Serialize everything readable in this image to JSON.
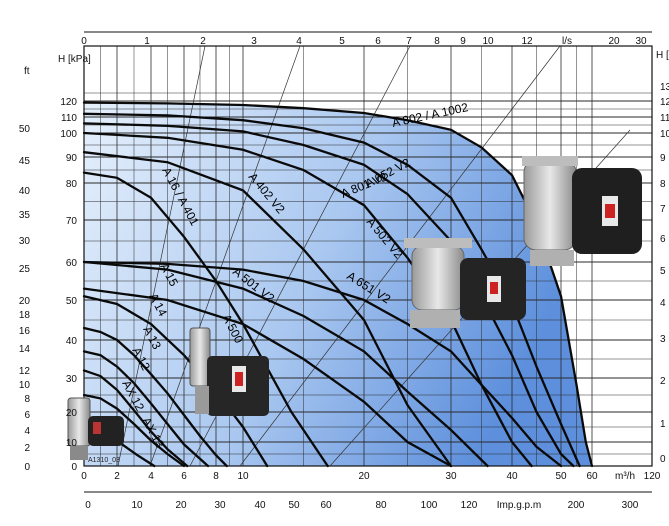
{
  "chart_data": {
    "type": "line",
    "title": "",
    "x_axis": {
      "label": "m³/h",
      "range": [
        0,
        120
      ],
      "ticks": [
        0,
        2,
        4,
        6,
        8,
        10,
        20,
        30,
        40,
        50,
        60,
        120
      ]
    },
    "top_axis": {
      "label": "l/s",
      "ticks": [
        "0",
        "1",
        "2",
        "3",
        "4",
        "5",
        "6",
        "7",
        "8",
        "9",
        "10",
        "12",
        "l/s",
        "20",
        "30"
      ]
    },
    "bottom_axis": {
      "label": "Imp.g.p.m",
      "ticks": [
        "0",
        "10",
        "20",
        "30",
        "40",
        "50",
        "60",
        "80",
        "100",
        "120",
        "Imp.g.p.m",
        "200",
        "300"
      ]
    },
    "y_axis": {
      "label": "H [kPa]",
      "range": [
        0,
        130
      ],
      "ticks": [
        0,
        10,
        20,
        30,
        40,
        50,
        60,
        70,
        80,
        90,
        100,
        110,
        120
      ]
    },
    "y_axis_ft": {
      "label": "ft",
      "ticks": [
        "0",
        "2",
        "4",
        "6",
        "8",
        "10",
        "12",
        "14",
        "16",
        "18",
        "20",
        "25",
        "30",
        "35",
        "40",
        "45",
        "50"
      ]
    },
    "y_axis_right": {
      "label": "H [m]",
      "ticks": [
        "0",
        "1",
        "2",
        "3",
        "4",
        "5",
        "6",
        "7",
        "8",
        "9",
        "10",
        "11",
        "12",
        "13"
      ]
    },
    "grid": true,
    "series": [
      {
        "name": "AX 12",
        "x": [
          0,
          0.8,
          1.6,
          2.4,
          3.2,
          4.2
        ],
        "y": [
          16,
          14.5,
          12,
          8.5,
          4.5,
          0
        ]
      },
      {
        "name": "AX 13",
        "x": [
          0,
          1,
          2,
          3,
          4,
          5,
          6
        ],
        "y": [
          25,
          24,
          21,
          16,
          10.5,
          5,
          0
        ]
      },
      {
        "name": "A 12",
        "x": [
          0,
          1,
          2,
          3,
          4,
          5,
          6.2
        ],
        "y": [
          32,
          30.5,
          26.5,
          20.5,
          13.5,
          7,
          0
        ]
      },
      {
        "name": "A 13",
        "x": [
          0,
          1,
          2,
          3,
          4,
          5,
          6,
          7.5
        ],
        "y": [
          37,
          36,
          33,
          28.5,
          22.5,
          16,
          9,
          0
        ]
      },
      {
        "name": "A 14",
        "x": [
          0,
          1,
          2,
          3,
          4,
          5,
          6,
          7,
          8,
          8.8
        ],
        "y": [
          43,
          42,
          40,
          36,
          31,
          25.5,
          19,
          12,
          4.5,
          0
        ]
      },
      {
        "name": "A 15",
        "x": [
          0,
          2,
          4,
          6,
          8,
          10,
          12
        ],
        "y": [
          51,
          49,
          44,
          36,
          26,
          15,
          0
        ]
      },
      {
        "name": "A 16 / A 401",
        "x": [
          0,
          2,
          4,
          6,
          8,
          10,
          14,
          17
        ],
        "y": [
          84,
          82,
          76,
          66,
          55,
          44,
          20,
          0
        ]
      },
      {
        "name": "A 500",
        "x": [
          0,
          5,
          10,
          15,
          20,
          25,
          30
        ],
        "y": [
          53,
          50,
          44,
          35,
          23,
          10,
          0
        ]
      },
      {
        "name": "A 501 V2",
        "x": [
          0,
          5,
          10,
          15,
          20,
          25,
          30,
          36
        ],
        "y": [
          60,
          58,
          53,
          46,
          37,
          26,
          14,
          0
        ]
      },
      {
        "name": "A 402 V2",
        "x": [
          0,
          5,
          10,
          15,
          20,
          25,
          30
        ],
        "y": [
          92,
          88,
          78,
          63,
          45,
          22,
          0
        ]
      },
      {
        "name": "A 502 V2",
        "x": [
          0,
          5,
          10,
          15,
          20,
          25,
          30,
          35,
          40,
          44
        ],
        "y": [
          100,
          98,
          93,
          85,
          74,
          61,
          45,
          28,
          10,
          0
        ]
      },
      {
        "name": "A 651 V2",
        "x": [
          0,
          5,
          10,
          15,
          20,
          25,
          30,
          35,
          40,
          45,
          50
        ],
        "y": [
          60,
          59.5,
          58,
          55,
          50,
          44,
          37,
          28,
          18,
          8,
          0
        ]
      },
      {
        "name": "A 801 V2",
        "x": [
          0,
          5,
          10,
          15,
          20,
          25,
          30,
          35,
          40,
          45,
          50,
          54
        ],
        "y": [
          106,
          104.5,
          101,
          95,
          87,
          77,
          65,
          51,
          36,
          20,
          5,
          0
        ]
      },
      {
        "name": "A 652 V2",
        "x": [
          0,
          5,
          10,
          15,
          20,
          25,
          30,
          35,
          40,
          45,
          50,
          56
        ],
        "y": [
          112,
          111,
          108,
          103,
          96,
          87,
          76,
          63,
          49,
          33,
          16,
          0
        ]
      },
      {
        "name": "A 802 / A 1002",
        "x": [
          0,
          5,
          10,
          15,
          20,
          25,
          30,
          35,
          40,
          45,
          50,
          55,
          58,
          60
        ],
        "y": [
          119,
          118.5,
          117.5,
          115.5,
          112.5,
          108,
          102,
          94,
          83,
          69,
          51,
          28,
          10,
          0
        ]
      }
    ],
    "annotations": [
      "A1310_03"
    ]
  },
  "colors": {
    "curve": "#0a0a0a",
    "area_light": "#d6e7fb",
    "area_dark": "#7aa6e3",
    "grid": "#2a2a2a"
  }
}
